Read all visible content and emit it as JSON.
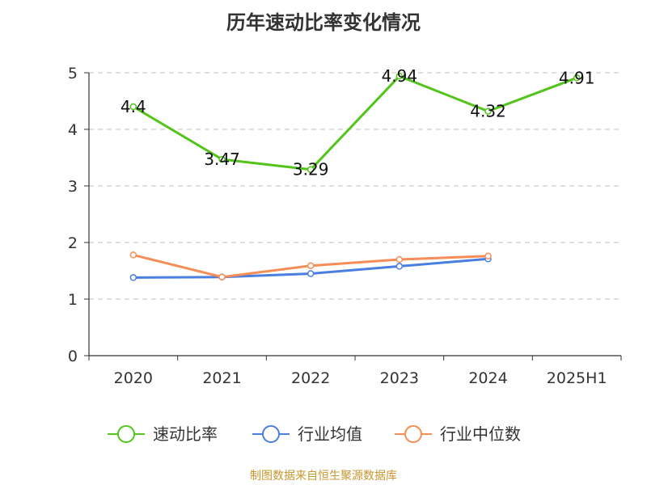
{
  "chart_data": {
    "type": "line",
    "title": "历年速动比率变化情况",
    "categories": [
      "2020",
      "2021",
      "2022",
      "2023",
      "2024",
      "2025H1"
    ],
    "ylim": [
      0,
      5
    ],
    "yticks": [
      0,
      1,
      2,
      3,
      4,
      5
    ],
    "ytick_labels": [
      "0",
      "1",
      "2",
      "3",
      "4",
      "5"
    ],
    "grid": true,
    "legend_position": "bottom",
    "series": [
      {
        "name": "速动比率",
        "color": "#52c41a",
        "values": [
          4.4,
          3.47,
          3.29,
          4.94,
          4.32,
          4.91
        ],
        "labels": [
          "4.4",
          "3.47",
          "3.29",
          "4.94",
          "4.32",
          "4.91"
        ]
      },
      {
        "name": "行业均值",
        "color": "#4a7ee0",
        "values": [
          1.38,
          1.39,
          1.45,
          1.58,
          1.71,
          null
        ]
      },
      {
        "name": "行业中位数",
        "color": "#f58e56",
        "values": [
          1.78,
          1.39,
          1.59,
          1.7,
          1.76,
          null
        ]
      }
    ]
  },
  "footer": {
    "source": "制图数据来自恒生聚源数据库"
  }
}
